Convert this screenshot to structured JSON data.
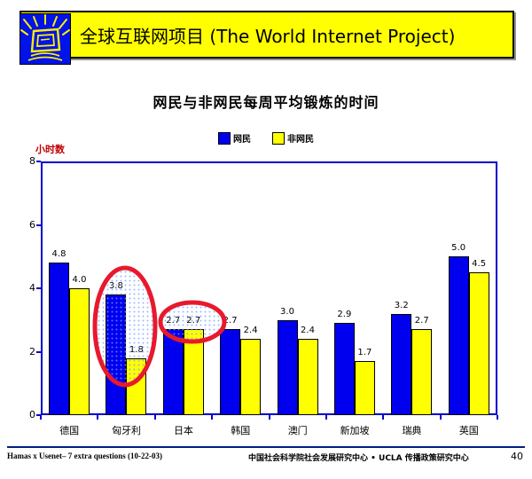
{
  "header": {
    "title": "全球互联网项目 (The World Internet Project)",
    "logo": "computer-monitor-logo"
  },
  "chart": {
    "title": "网民与非网民每周平均锻炼的时间",
    "ylabel": "小时数"
  },
  "chart_data": {
    "type": "bar",
    "title": "网民与非网民每周平均锻炼的时间",
    "ylabel": "小时数",
    "xlabel": "",
    "ylim": [
      0,
      8
    ],
    "yticks": [
      0,
      2,
      4,
      6,
      8
    ],
    "grid": false,
    "legend_position": "top-center",
    "value_labels": true,
    "categories": [
      "德国",
      "匈牙利",
      "日本",
      "韩国",
      "澳门",
      "新加坡",
      "瑞典",
      "英国"
    ],
    "series": [
      {
        "name": "网民",
        "color": "#0000ee",
        "values": [
          4.8,
          3.8,
          2.7,
          2.7,
          3.0,
          2.9,
          3.2,
          5.0
        ]
      },
      {
        "name": "非网民",
        "color": "#ffff00",
        "values": [
          4.0,
          1.8,
          2.7,
          2.4,
          2.4,
          1.7,
          2.7,
          4.5
        ]
      }
    ],
    "annotations": [
      {
        "type": "ellipse",
        "note": "highlight-hungary-gap",
        "category": "匈牙利",
        "cx": 141,
        "cy": 368,
        "rx": 34,
        "ry": 66
      },
      {
        "type": "ellipse",
        "note": "highlight-japan-equal",
        "category": "日本",
        "cx": 217,
        "cy": 363,
        "rx": 36,
        "ry": 22
      }
    ]
  },
  "footer": {
    "left": "Hamas x Usenet– 7 extra questions (10-22-03)",
    "center": "中国社会科学院社会发展研究中心 • UCLA 传播政策研究中心",
    "page": "40"
  },
  "colors": {
    "banner_bg": "#ffff00",
    "logo_bg": "#0013e8",
    "axis_blue": "#0000cc",
    "netizen_blue": "#0000ee",
    "non_netizen_yellow": "#ffff00",
    "annotation_red": "#e8192c",
    "ylabel_red": "#c00000"
  }
}
